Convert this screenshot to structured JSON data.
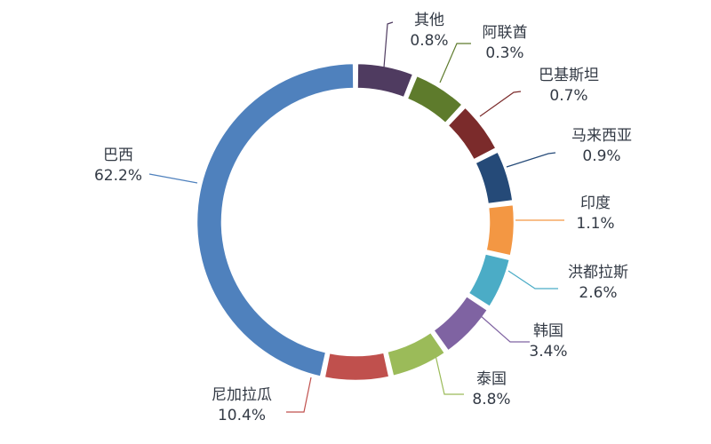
{
  "chart_data": {
    "type": "pie",
    "variant": "donut",
    "title": "",
    "legend": "none",
    "slices": [
      {
        "name": "其他",
        "value": 0.8,
        "label": "0.8%",
        "color": "#4f3b60"
      },
      {
        "name": "阿联酋",
        "value": 0.3,
        "label": "0.3%",
        "color": "#5e7b2c"
      },
      {
        "name": "巴基斯坦",
        "value": 0.7,
        "label": "0.7%",
        "color": "#7b2b2b"
      },
      {
        "name": "马来西亚",
        "value": 0.9,
        "label": "0.9%",
        "color": "#254a78"
      },
      {
        "name": "印度",
        "value": 1.1,
        "label": "1.1%",
        "color": "#f39743"
      },
      {
        "name": "洪都拉斯",
        "value": 2.6,
        "label": "2.6%",
        "color": "#4bacc6"
      },
      {
        "name": "韩国",
        "value": 3.4,
        "label": "3.4%",
        "color": "#7f63a2"
      },
      {
        "name": "泰国",
        "value": 8.8,
        "label": "8.8%",
        "color": "#9bbb59"
      },
      {
        "name": "尼加拉瓜",
        "value": 10.4,
        "label": "10.4%",
        "color": "#c0504d"
      },
      {
        "name": "巴西",
        "value": 62.2,
        "label": "62.2%",
        "color": "#4f81bd"
      }
    ]
  }
}
